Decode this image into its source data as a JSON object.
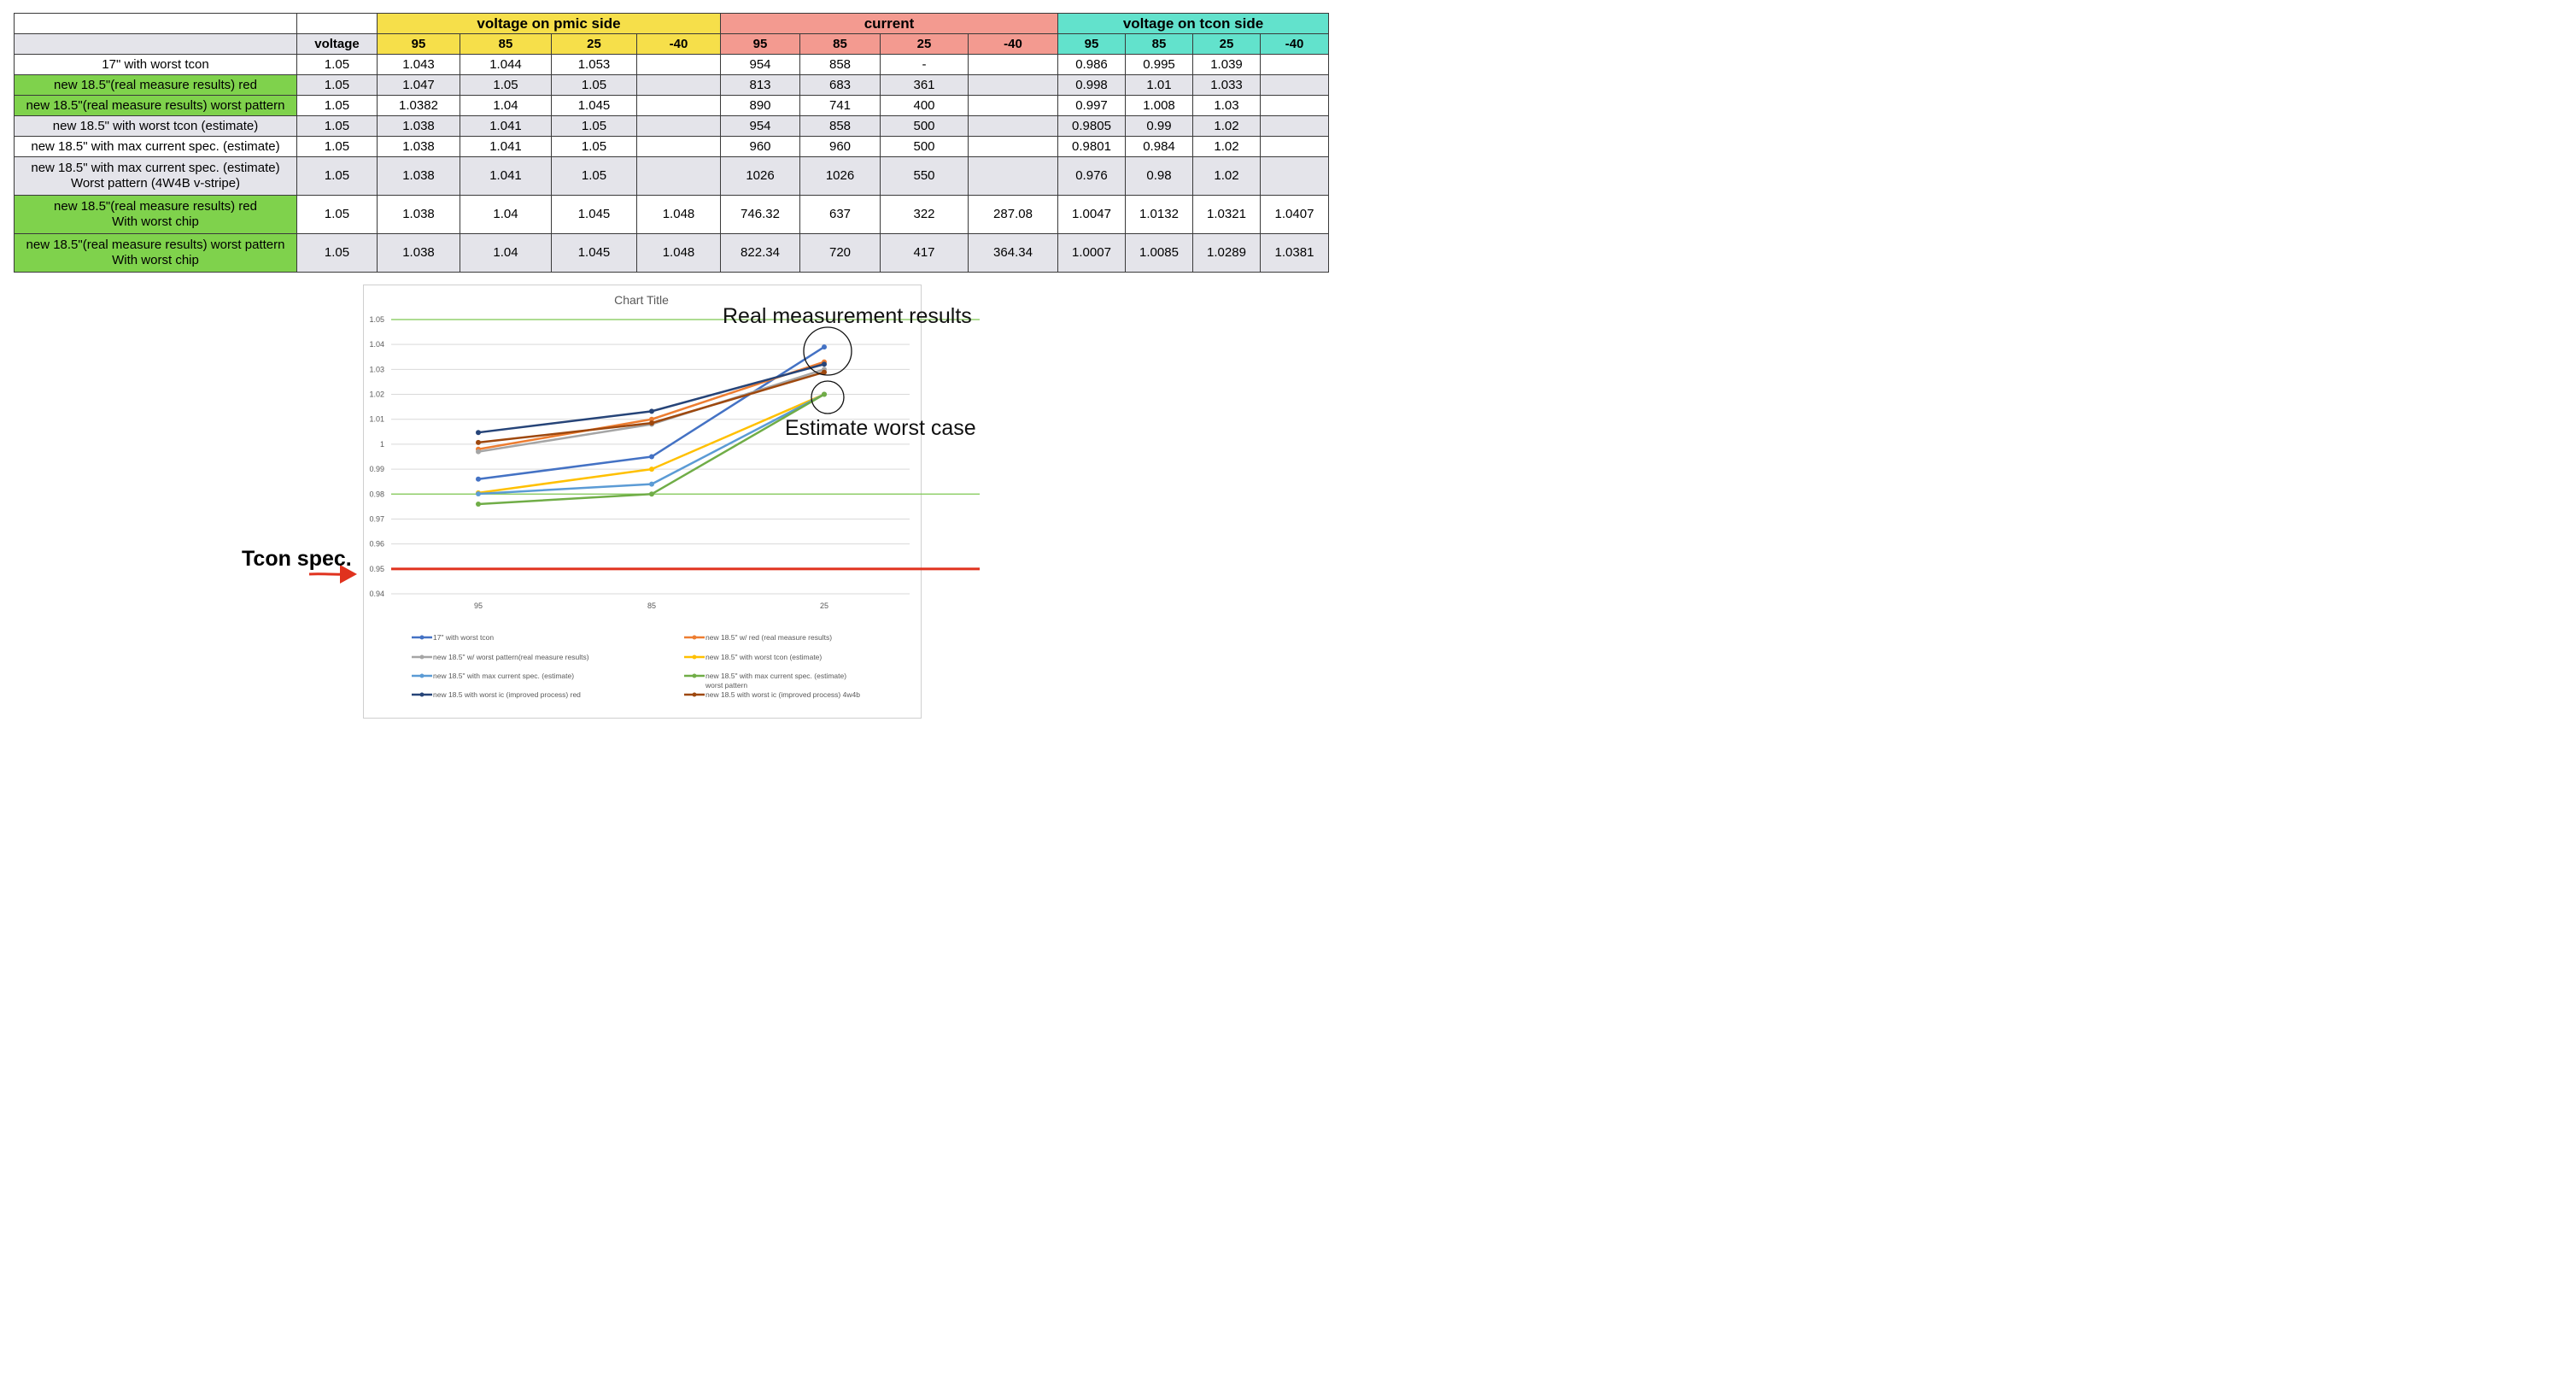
{
  "table": {
    "groups": [
      "voltage on pmic side",
      "current",
      "voltage on tcon side"
    ],
    "header": {
      "voltage": "voltage",
      "pmic": [
        "95",
        "85",
        "25",
        "-40"
      ],
      "current": [
        "95",
        "85",
        "25",
        "-40"
      ],
      "tcon": [
        "95",
        "85",
        "25",
        "-40"
      ]
    },
    "rows": [
      {
        "label": "17\" with worst tcon",
        "voltage": "1.05",
        "pmic": [
          "1.043",
          "1.044",
          "1.053",
          ""
        ],
        "current": [
          "954",
          "858",
          "-",
          ""
        ],
        "tcon": [
          "0.986",
          "0.995",
          "1.039",
          ""
        ]
      },
      {
        "label": "new 18.5\"(real measure results) red",
        "voltage": "1.05",
        "pmic": [
          "1.047",
          "1.05",
          "1.05",
          ""
        ],
        "current": [
          "813",
          "683",
          "361",
          ""
        ],
        "tcon": [
          "0.998",
          "1.01",
          "1.033",
          ""
        ]
      },
      {
        "label": "new 18.5\"(real measure results) worst pattern",
        "voltage": "1.05",
        "pmic": [
          "1.0382",
          "1.04",
          "1.045",
          ""
        ],
        "current": [
          "890",
          "741",
          "400",
          ""
        ],
        "tcon": [
          "0.997",
          "1.008",
          "1.03",
          ""
        ]
      },
      {
        "label": "new 18.5\" with worst tcon (estimate)",
        "voltage": "1.05",
        "pmic": [
          "1.038",
          "1.041",
          "1.05",
          ""
        ],
        "current": [
          "954",
          "858",
          "500",
          ""
        ],
        "tcon": [
          "0.9805",
          "0.99",
          "1.02",
          ""
        ]
      },
      {
        "label": "new 18.5\" with max current spec. (estimate)",
        "voltage": "1.05",
        "pmic": [
          "1.038",
          "1.041",
          "1.05",
          ""
        ],
        "current": [
          "960",
          "960",
          "500",
          ""
        ],
        "tcon": [
          "0.9801",
          "0.984",
          "1.02",
          ""
        ]
      },
      {
        "label": "new 18.5\" with max current spec. (estimate)",
        "label2": "Worst pattern (4W4B v-stripe)",
        "voltage": "1.05",
        "pmic": [
          "1.038",
          "1.041",
          "1.05",
          ""
        ],
        "current": [
          "1026",
          "1026",
          "550",
          ""
        ],
        "tcon": [
          "0.976",
          "0.98",
          "1.02",
          ""
        ]
      },
      {
        "label": "new 18.5\"(real measure results) red",
        "label2": "With worst chip",
        "voltage": "1.05",
        "pmic": [
          "1.038",
          "1.04",
          "1.045",
          "1.048"
        ],
        "current": [
          "746.32",
          "637",
          "322",
          "287.08"
        ],
        "tcon": [
          "1.0047",
          "1.0132",
          "1.0321",
          "1.0407"
        ]
      },
      {
        "label": "new 18.5\"(real measure results) worst pattern",
        "label2": "With worst chip",
        "voltage": "1.05",
        "pmic": [
          "1.038",
          "1.04",
          "1.045",
          "1.048"
        ],
        "current": [
          "822.34",
          "720",
          "417",
          "364.34"
        ],
        "tcon": [
          "1.0007",
          "1.0085",
          "1.0289",
          "1.0381"
        ]
      }
    ]
  },
  "annotations": {
    "real": "Real measurement results",
    "estimate": "Estimate worst case",
    "tcon_spec": "Tcon spec."
  },
  "colors": {
    "yellow_header": "#f6df4a",
    "red_header": "#f39a90",
    "cyan_header": "#62e2cc",
    "green_label": "#7fd24c",
    "gray_row": "#e4e4ea",
    "limit_line": "#7ec850",
    "spec_line": "#e0321e"
  },
  "chart_data": {
    "type": "line",
    "title": "Chart Title",
    "xlabel": "",
    "ylabel": "",
    "categories": [
      "95",
      "85",
      "25"
    ],
    "ylim": [
      0.94,
      1.05
    ],
    "yticks": [
      "0.94",
      "0.95",
      "0.96",
      "0.97",
      "0.98",
      "0.99",
      "1",
      "1.01",
      "1.02",
      "1.03",
      "1.04",
      "1.05"
    ],
    "grid": true,
    "legend_position": "bottom",
    "series": [
      {
        "name": "17\" with worst tcon",
        "color": "#4472c4",
        "values": [
          0.986,
          0.995,
          1.039
        ]
      },
      {
        "name": "new 18.5\" w/ red (real measure results)",
        "color": "#ed7d31",
        "values": [
          0.998,
          1.01,
          1.033
        ]
      },
      {
        "name": "new 18.5\" w/ worst pattern(real measure results)",
        "color": "#a5a5a5",
        "values": [
          0.997,
          1.008,
          1.03
        ]
      },
      {
        "name": "new 18.5\" with worst tcon (estimate)",
        "color": "#ffc000",
        "values": [
          0.9805,
          0.99,
          1.02
        ]
      },
      {
        "name": "new 18.5\" with max current spec. (estimate)",
        "color": "#5b9bd5",
        "values": [
          0.9801,
          0.984,
          1.02
        ]
      },
      {
        "name": "new 18.5\" with max current spec. (estimate)",
        "name2": "worst pattern",
        "color": "#70ad47",
        "values": [
          0.976,
          0.98,
          1.02
        ]
      },
      {
        "name": "new 18.5 with worst ic (improved process) red",
        "color": "#264478",
        "values": [
          1.0047,
          1.0132,
          1.0321
        ]
      },
      {
        "name": "new 18.5 with worst ic (improved process) 4w4b",
        "color": "#9e480e",
        "values": [
          1.0007,
          1.0085,
          1.0289
        ]
      }
    ],
    "reference_lines": [
      {
        "value": 1.05,
        "color": "#7ec850"
      },
      {
        "value": 0.98,
        "color": "#7ec850"
      },
      {
        "value": 0.95,
        "color": "#e0321e"
      }
    ]
  }
}
